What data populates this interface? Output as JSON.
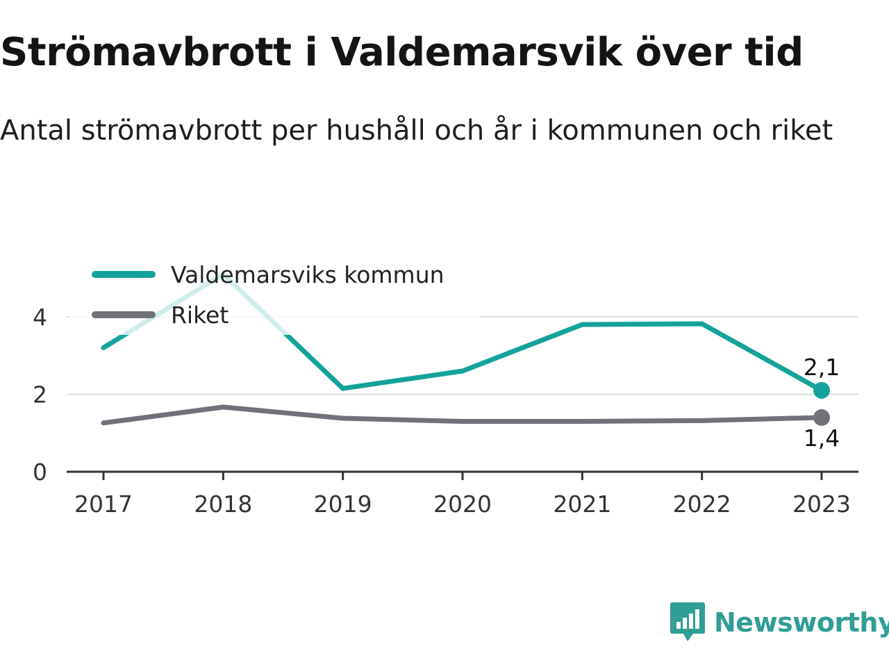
{
  "title": "Strömavbrott i Valdemarsvik över tid",
  "subtitle": "Antal strömavbrott per hushåll och år i kommunen och riket",
  "brand": {
    "name": "Newsworthy",
    "color": "#2f9e95"
  },
  "chart_data": {
    "type": "line",
    "x": [
      "2017",
      "2018",
      "2019",
      "2020",
      "2021",
      "2022",
      "2023"
    ],
    "yticks": [
      "0",
      "2",
      "4"
    ],
    "ylim": [
      0,
      5.2
    ],
    "grid": true,
    "legend_position": "top-left",
    "series": [
      {
        "name": "Valdemarsviks kommun",
        "color": "#14a39a",
        "values": [
          3.2,
          5.1,
          2.15,
          2.6,
          3.8,
          3.82,
          2.1
        ],
        "end_label": "2,1"
      },
      {
        "name": "Riket",
        "color": "#727179",
        "values": [
          1.26,
          1.67,
          1.38,
          1.3,
          1.3,
          1.32,
          1.4
        ],
        "end_label": "1,4"
      }
    ]
  }
}
